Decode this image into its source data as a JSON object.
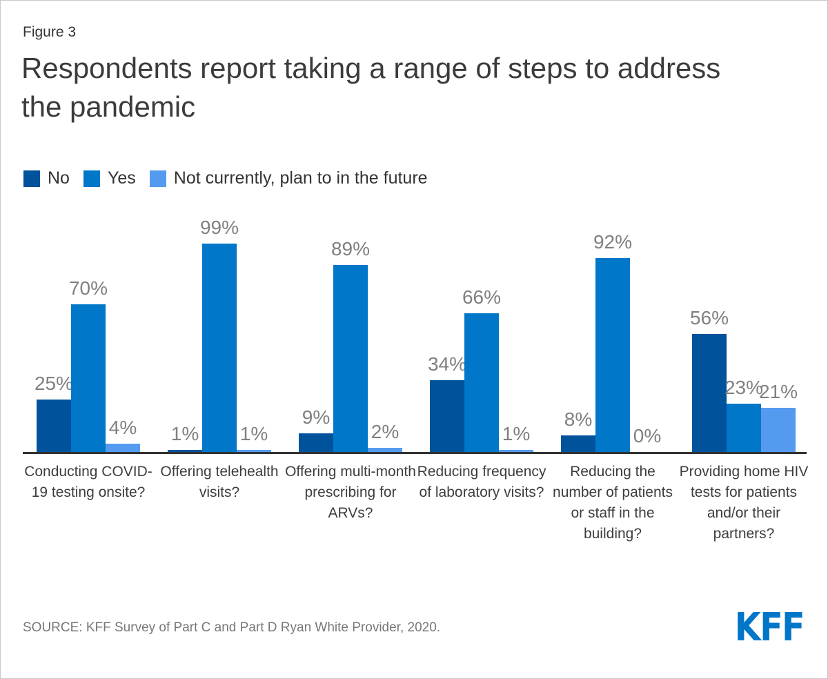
{
  "figure_label": "Figure 3",
  "title": "Respondents report taking a range of steps to address the pandemic",
  "source": "SOURCE: KFF Survey of Part C and Part D Ryan White Provider, 2020.",
  "logo_text": "KFF",
  "colors": {
    "no": "#00529B",
    "yes": "#0077C8",
    "future": "#549BF0",
    "axis": "#333333",
    "value_label": "#808080",
    "logo_blue": "#0076C9"
  },
  "chart_data": {
    "type": "bar",
    "categories": [
      "Conducting COVID-19 testing onsite?",
      "Offering telehealth visits?",
      "Offering multi-month prescribing for ARVs?",
      "Reducing frequency of laboratory visits?",
      "Reducing the number of patients or staff in the building?",
      "Providing home HIV tests for patients and/or their partners?"
    ],
    "series": [
      {
        "name": "No",
        "color": "#00529B",
        "values": [
          25,
          1,
          9,
          34,
          8,
          56
        ]
      },
      {
        "name": "Yes",
        "color": "#0077C8",
        "values": [
          70,
          99,
          89,
          66,
          92,
          23
        ]
      },
      {
        "name": "Not currently, plan to in the future",
        "color": "#549BF0",
        "values": [
          4,
          1,
          2,
          1,
          0,
          21
        ]
      }
    ],
    "value_suffix": "%",
    "ylim": [
      0,
      100
    ],
    "grid": false,
    "data_labels": true,
    "legend_position": "top-left"
  }
}
